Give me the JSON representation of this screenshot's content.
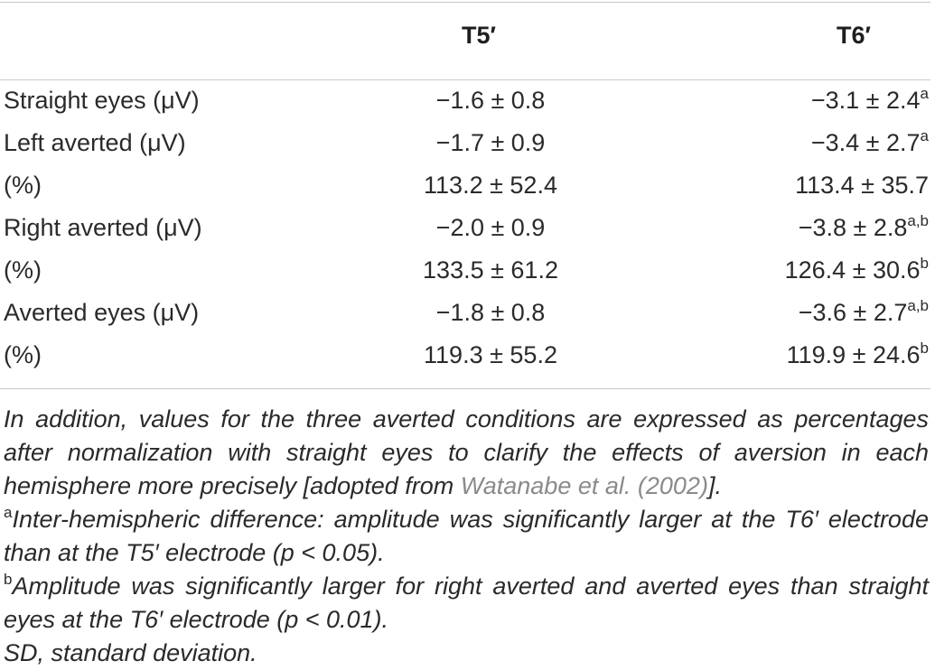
{
  "table": {
    "headers": {
      "row_label": "",
      "t5": "T5′",
      "t6": "T6′"
    },
    "rows": [
      {
        "label": "Straight eyes (μV)",
        "t5": "−1.6 ± 0.8",
        "t6": "−3.1 ± 2.4",
        "t6_sup": "a"
      },
      {
        "label": "Left averted (μV)",
        "t5": "−1.7 ± 0.9",
        "t6": "−3.4 ± 2.7",
        "t6_sup": "a"
      },
      {
        "label": "(%)",
        "t5": "113.2 ± 52.4",
        "t6": "113.4 ± 35.7",
        "t6_sup": ""
      },
      {
        "label": "Right averted (μV)",
        "t5": "−2.0 ± 0.9",
        "t6": "−3.8 ± 2.8",
        "t6_sup": "a,b"
      },
      {
        "label": "(%)",
        "t5": "133.5 ± 61.2",
        "t6": "126.4 ± 30.6",
        "t6_sup": "b"
      },
      {
        "label": "Averted eyes (μV)",
        "t5": "−1.8 ± 0.8",
        "t6": "−3.6 ± 2.7",
        "t6_sup": "a,b"
      },
      {
        "label": "(%)",
        "t5": "119.3 ± 55.2",
        "t6": "119.9 ± 24.6",
        "t6_sup": "b"
      }
    ]
  },
  "footnotes": {
    "intro_text": "In addition, values for the three averted conditions are expressed as percentages after normalization with straight eyes to clarify the effects of aversion in each hemisphere more precisely [adopted from ",
    "intro_ref": "Watanabe et al. (2002)",
    "intro_end": "].",
    "note_a_marker": "a",
    "note_a": "Inter-hemispheric difference: amplitude was significantly larger at the T6′ electrode than at the T5′ electrode (p < 0.05).",
    "note_b_marker": "b",
    "note_b": "Amplitude was significantly larger for right averted and averted eyes than straight eyes at the T6′ electrode (p < 0.01).",
    "sd_note": "SD, standard deviation."
  },
  "colors": {
    "text": "#2a2a2a",
    "rule": "#c9c9c9",
    "reference_link": "#8a8a8a"
  }
}
